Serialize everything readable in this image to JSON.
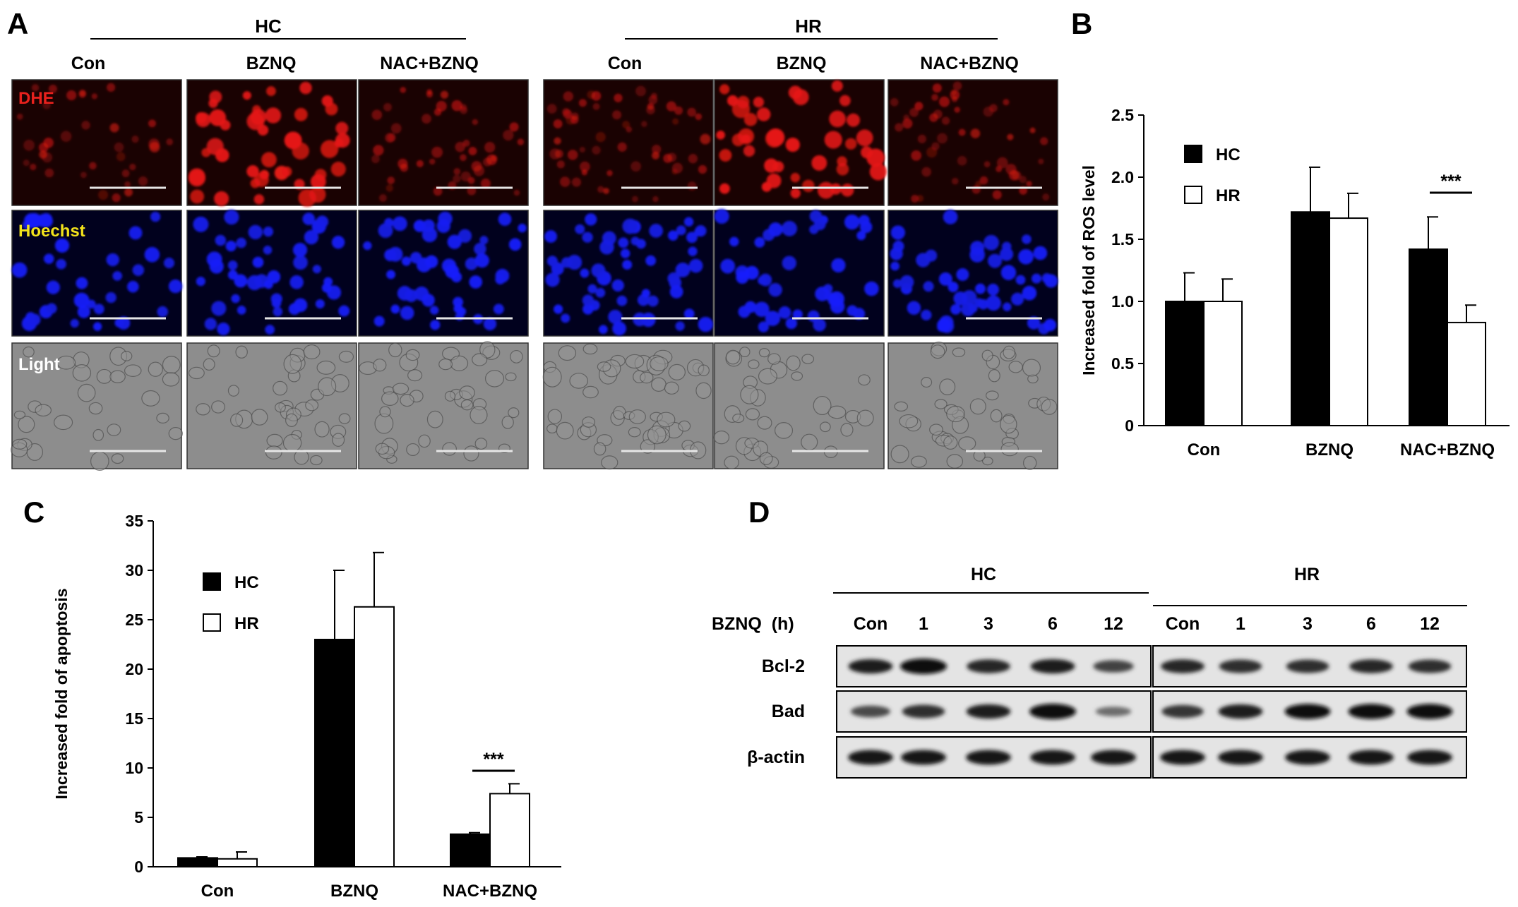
{
  "panels": {
    "A": {
      "letter": "A",
      "groups": [
        {
          "label": "HC",
          "conditions": [
            "Con",
            "BZNQ",
            "NAC+BZNQ"
          ]
        },
        {
          "label": "HR",
          "conditions": [
            "Con",
            "BZNQ",
            "NAC+BZNQ"
          ]
        }
      ],
      "rows": [
        {
          "label": "DHE",
          "label_color": "#e8211d"
        },
        {
          "label": "Hoechst",
          "label_color": "#f2e21b"
        },
        {
          "label": "Light",
          "label_color": "#ffffff"
        }
      ]
    },
    "B": {
      "letter": "B",
      "significance": "***"
    },
    "C": {
      "letter": "C",
      "significance": "***"
    },
    "D": {
      "letter": "D",
      "groups": [
        "HC",
        "HR"
      ],
      "time_label": "BZNQ  (h)",
      "lanes": [
        "Con",
        "1",
        "3",
        "6",
        "12",
        "Con",
        "1",
        "3",
        "6",
        "12"
      ],
      "rows": [
        {
          "label": "Bcl-2",
          "intensity": [
            0.85,
            1.0,
            0.8,
            0.85,
            0.6,
            0.8,
            0.75,
            0.75,
            0.8,
            0.75
          ]
        },
        {
          "label": "Bad",
          "intensity": [
            0.55,
            0.75,
            0.85,
            1.0,
            0.3,
            0.7,
            0.85,
            0.95,
            0.95,
            0.95
          ]
        },
        {
          "label": "β-actin",
          "intensity": [
            0.9,
            0.9,
            0.9,
            0.9,
            0.9,
            0.9,
            0.9,
            0.9,
            0.9,
            0.9
          ]
        }
      ]
    }
  },
  "chart_data": [
    {
      "panel": "B",
      "type": "bar",
      "categories": [
        "Con",
        "BZNQ",
        "NAC+BZNQ"
      ],
      "series": [
        {
          "name": "HC",
          "values": [
            1.0,
            1.72,
            1.42
          ],
          "error": [
            0.23,
            0.36,
            0.26
          ],
          "color": "#000000"
        },
        {
          "name": "HR",
          "values": [
            1.0,
            1.67,
            0.83
          ],
          "error": [
            0.18,
            0.2,
            0.14
          ],
          "color": "#ffffff"
        }
      ],
      "ylabel": "Increased fold of ROS level",
      "ylim": [
        0,
        2.5
      ],
      "yticks": [
        "0",
        "0.5",
        "1.0",
        "1.5",
        "2.0",
        "2.5"
      ],
      "legend": "top-left"
    },
    {
      "panel": "C",
      "type": "bar",
      "categories": [
        "Con",
        "BZNQ",
        "NAC+BZNQ"
      ],
      "series": [
        {
          "name": "HC",
          "values": [
            0.9,
            23.0,
            3.3
          ],
          "error": [
            0.1,
            7.0,
            0.15
          ],
          "color": "#000000"
        },
        {
          "name": "HR",
          "values": [
            0.8,
            26.3,
            7.4
          ],
          "error": [
            0.7,
            5.5,
            1.0
          ],
          "color": "#ffffff"
        }
      ],
      "ylabel": "Increased fold of apoptosis",
      "ylim": [
        0,
        35
      ],
      "yticks": [
        "0",
        "5",
        "10",
        "15",
        "20",
        "25",
        "30",
        "35"
      ],
      "legend": "top-left"
    }
  ]
}
